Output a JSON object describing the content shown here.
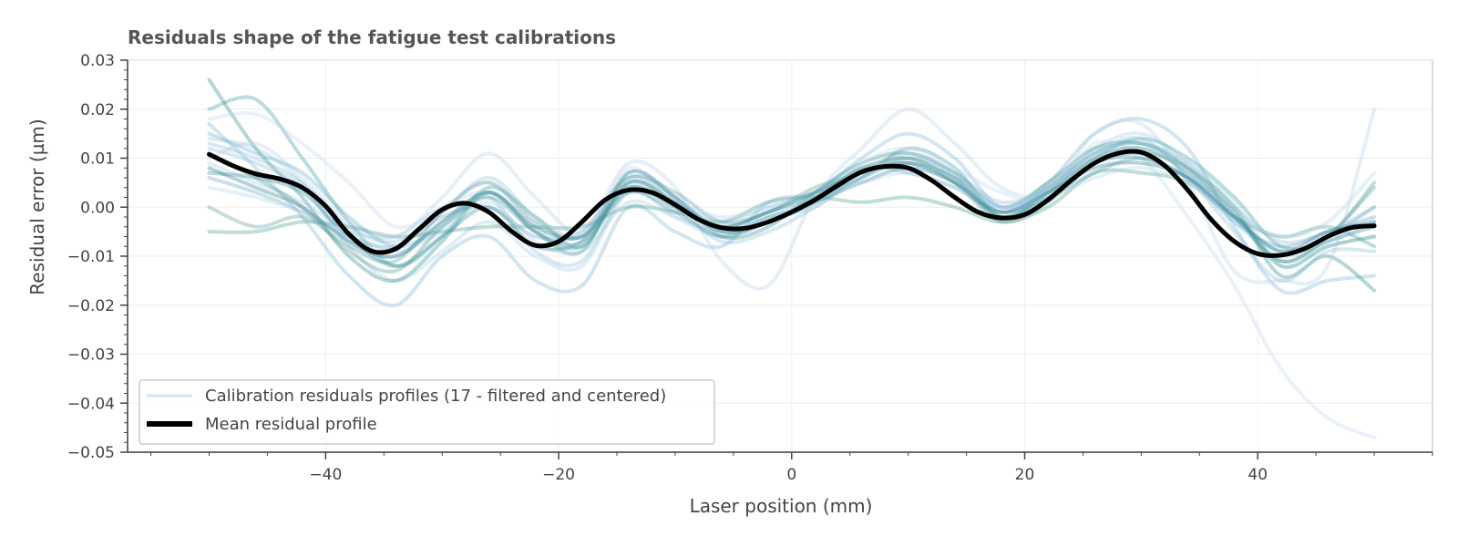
{
  "chart_data": {
    "type": "line",
    "title": "Residuals shape of the fatigue test calibrations",
    "xlabel": "Laser position (mm)",
    "ylabel": "Residual error (µm)",
    "xlim": [
      -57,
      55
    ],
    "ylim": [
      -0.05,
      0.03
    ],
    "x_ticks": [
      -40,
      -20,
      0,
      20,
      40
    ],
    "x_tick_labels": [
      "−40",
      "−20",
      "0",
      "20",
      "40"
    ],
    "y_ticks": [
      -0.05,
      -0.04,
      -0.03,
      -0.02,
      -0.01,
      0.0,
      0.01,
      0.02,
      0.03
    ],
    "y_tick_labels": [
      "−0.05",
      "−0.04",
      "−0.03",
      "−0.02",
      "−0.01",
      "0.00",
      "0.01",
      "0.02",
      "0.03"
    ],
    "grid": true,
    "legend_position": "lower-left",
    "legend": [
      {
        "label": "Calibration residuals profiles (17 - filtered and centered)",
        "style": "thin-light"
      },
      {
        "label": "Mean residual profile",
        "style": "thick-black"
      }
    ],
    "mean_series": {
      "name": "Mean residual profile",
      "color": "#000000",
      "points": [
        [
          -50,
          0.0108
        ],
        [
          -48,
          0.0085
        ],
        [
          -46,
          0.0068
        ],
        [
          -44,
          0.0058
        ],
        [
          -42,
          0.004
        ],
        [
          -40,
          0.0002
        ],
        [
          -38,
          -0.0055
        ],
        [
          -36,
          -0.009
        ],
        [
          -34,
          -0.0085
        ],
        [
          -32,
          -0.0045
        ],
        [
          -30,
          -0.0005
        ],
        [
          -28,
          0.0008
        ],
        [
          -26,
          -0.001
        ],
        [
          -24,
          -0.005
        ],
        [
          -22,
          -0.0078
        ],
        [
          -20,
          -0.007
        ],
        [
          -18,
          -0.003
        ],
        [
          -16,
          0.0015
        ],
        [
          -14,
          0.0035
        ],
        [
          -12,
          0.003
        ],
        [
          -10,
          0.0005
        ],
        [
          -8,
          -0.0025
        ],
        [
          -6,
          -0.0042
        ],
        [
          -4,
          -0.0043
        ],
        [
          -2,
          -0.003
        ],
        [
          0,
          -0.001
        ],
        [
          2,
          0.0015
        ],
        [
          4,
          0.0045
        ],
        [
          6,
          0.0072
        ],
        [
          8,
          0.0083
        ],
        [
          10,
          0.008
        ],
        [
          12,
          0.0055
        ],
        [
          14,
          0.002
        ],
        [
          16,
          -0.001
        ],
        [
          18,
          -0.0022
        ],
        [
          20,
          -0.0015
        ],
        [
          22,
          0.0015
        ],
        [
          24,
          0.0055
        ],
        [
          26,
          0.009
        ],
        [
          28,
          0.011
        ],
        [
          30,
          0.0112
        ],
        [
          32,
          0.0085
        ],
        [
          34,
          0.0035
        ],
        [
          36,
          -0.0025
        ],
        [
          38,
          -0.007
        ],
        [
          40,
          -0.0095
        ],
        [
          42,
          -0.0098
        ],
        [
          44,
          -0.0085
        ],
        [
          46,
          -0.006
        ],
        [
          48,
          -0.0042
        ],
        [
          50,
          -0.0038
        ]
      ]
    },
    "series_x": [
      -50,
      -46,
      -42,
      -38,
      -34,
      -30,
      -26,
      -22,
      -18,
      -14,
      -10,
      -6,
      -2,
      2,
      6,
      10,
      14,
      18,
      22,
      26,
      30,
      34,
      38,
      42,
      46,
      50
    ],
    "series": [
      {
        "color": "#a6cee3",
        "y": [
          0.014,
          0.012,
          0.005,
          -0.008,
          -0.015,
          -0.009,
          -0.003,
          -0.01,
          -0.012,
          0.003,
          -0.002,
          -0.006,
          -0.002,
          0.0,
          0.007,
          0.009,
          0.006,
          -0.002,
          0.004,
          0.012,
          0.015,
          0.009,
          0.001,
          -0.012,
          -0.008,
          -0.006
        ]
      },
      {
        "color": "#6aa6c9",
        "y": [
          0.006,
          0.003,
          -0.001,
          -0.006,
          -0.008,
          -0.002,
          0.0,
          -0.006,
          -0.005,
          0.006,
          0.002,
          -0.005,
          -0.003,
          0.001,
          0.008,
          0.007,
          0.004,
          -0.001,
          0.002,
          0.007,
          0.01,
          0.006,
          -0.003,
          -0.008,
          -0.005,
          -0.002
        ]
      },
      {
        "color": "#3a9fa0",
        "y": [
          0.02,
          0.022,
          0.01,
          -0.003,
          -0.012,
          -0.006,
          0.004,
          -0.002,
          -0.008,
          0.005,
          0.001,
          -0.004,
          -0.001,
          0.002,
          0.006,
          0.012,
          0.008,
          -0.002,
          0.003,
          0.01,
          0.014,
          0.01,
          0.002,
          -0.008,
          -0.006,
          0.005
        ]
      },
      {
        "color": "#7ab8d6",
        "y": [
          0.017,
          0.008,
          -0.002,
          -0.014,
          -0.02,
          -0.01,
          -0.006,
          -0.015,
          -0.016,
          0.0,
          -0.005,
          -0.008,
          0.001,
          0.003,
          0.01,
          0.015,
          0.01,
          0.0,
          0.005,
          0.015,
          0.018,
          0.012,
          -0.004,
          -0.017,
          -0.015,
          -0.014
        ]
      },
      {
        "color": "#2e8b8b",
        "y": [
          0.026,
          0.012,
          0.002,
          -0.01,
          -0.015,
          -0.007,
          0.003,
          -0.005,
          -0.009,
          0.007,
          0.002,
          -0.006,
          -0.004,
          0.003,
          0.009,
          0.011,
          0.007,
          0.0,
          0.005,
          0.012,
          0.013,
          0.008,
          0.0,
          -0.014,
          -0.01,
          -0.017
        ]
      },
      {
        "color": "#b8d2e8",
        "y": [
          0.01,
          0.013,
          0.006,
          -0.003,
          -0.006,
          0.002,
          0.011,
          0.002,
          -0.005,
          0.009,
          0.004,
          -0.011,
          -0.016,
          0.002,
          0.012,
          0.02,
          0.013,
          0.004,
          0.003,
          0.015,
          0.017,
          0.005,
          -0.013,
          -0.015,
          -0.012,
          0.02
        ]
      },
      {
        "color": "#c4d6ec",
        "y": [
          0.018,
          0.019,
          0.013,
          0.005,
          -0.004,
          0.0,
          0.005,
          -0.004,
          -0.007,
          0.008,
          0.0,
          -0.004,
          -0.002,
          0.001,
          0.009,
          0.012,
          0.008,
          0.003,
          0.002,
          0.013,
          0.01,
          -0.002,
          -0.016,
          -0.033,
          -0.043,
          -0.047
        ]
      },
      {
        "color": "#4a9e8a",
        "y": [
          -0.005,
          -0.005,
          -0.003,
          -0.004,
          -0.006,
          -0.005,
          -0.004,
          -0.004,
          -0.004,
          0.0,
          -0.001,
          -0.003,
          0.001,
          0.002,
          0.001,
          0.002,
          0.0,
          -0.003,
          0.0,
          0.007,
          0.007,
          0.005,
          -0.002,
          -0.006,
          -0.004,
          -0.008
        ]
      },
      {
        "color": "#8ec0dc",
        "y": [
          0.012,
          0.009,
          0.004,
          -0.007,
          -0.01,
          -0.003,
          0.002,
          -0.009,
          -0.011,
          0.004,
          0.0,
          -0.007,
          -0.005,
          0.0,
          0.006,
          0.01,
          0.007,
          -0.001,
          0.004,
          0.011,
          0.014,
          0.006,
          -0.005,
          -0.015,
          -0.009,
          -0.009
        ]
      },
      {
        "color": "#5e9e9e",
        "y": [
          0.0,
          -0.004,
          -0.002,
          -0.008,
          -0.011,
          -0.001,
          0.005,
          -0.003,
          -0.006,
          0.006,
          0.003,
          -0.003,
          -0.001,
          0.004,
          0.007,
          0.01,
          0.005,
          -0.003,
          0.001,
          0.009,
          0.011,
          0.008,
          -0.001,
          -0.011,
          -0.006,
          0.004
        ]
      },
      {
        "color": "#a8cde5",
        "y": [
          0.009,
          0.005,
          0.001,
          -0.005,
          -0.009,
          -0.005,
          0.001,
          -0.007,
          -0.009,
          0.001,
          -0.002,
          -0.005,
          -0.002,
          0.002,
          0.008,
          0.009,
          0.006,
          0.0,
          0.003,
          0.01,
          0.012,
          0.007,
          -0.003,
          -0.01,
          -0.007,
          -0.003
        ]
      },
      {
        "color": "#3b8fa3",
        "y": [
          0.007,
          0.006,
          0.003,
          -0.006,
          -0.012,
          -0.006,
          0.0,
          -0.008,
          -0.007,
          0.003,
          -0.001,
          -0.006,
          -0.003,
          0.001,
          0.005,
          0.008,
          0.005,
          -0.002,
          0.002,
          0.009,
          0.01,
          0.006,
          -0.002,
          -0.011,
          -0.007,
          -0.004
        ]
      },
      {
        "color": "#93bed6",
        "y": [
          0.013,
          0.01,
          0.005,
          -0.004,
          -0.007,
          -0.001,
          0.006,
          -0.002,
          -0.006,
          0.005,
          0.001,
          -0.003,
          0.0,
          0.003,
          0.007,
          0.011,
          0.007,
          0.001,
          0.004,
          0.011,
          0.013,
          0.009,
          0.0,
          -0.007,
          -0.005,
          0.0
        ]
      },
      {
        "color": "#4f9c96",
        "y": [
          0.011,
          0.006,
          0.0,
          -0.009,
          -0.013,
          -0.004,
          0.002,
          -0.005,
          -0.008,
          0.005,
          0.001,
          -0.005,
          -0.003,
          0.002,
          0.008,
          0.01,
          0.006,
          -0.002,
          0.003,
          0.01,
          0.012,
          0.007,
          -0.001,
          -0.012,
          -0.008,
          -0.006
        ]
      },
      {
        "color": "#b5d5ea",
        "y": [
          0.004,
          0.002,
          -0.001,
          -0.005,
          -0.006,
          0.0,
          0.003,
          -0.003,
          -0.004,
          0.004,
          0.001,
          -0.002,
          0.0,
          0.002,
          0.005,
          0.007,
          0.004,
          0.0,
          0.002,
          0.006,
          0.008,
          0.005,
          -0.001,
          -0.006,
          -0.003,
          0.007
        ]
      },
      {
        "color": "#6fb0c8",
        "y": [
          0.015,
          0.011,
          0.007,
          -0.002,
          -0.008,
          -0.004,
          0.003,
          -0.005,
          -0.007,
          0.007,
          0.002,
          -0.005,
          -0.002,
          0.001,
          0.006,
          0.009,
          0.006,
          -0.001,
          0.004,
          0.011,
          0.013,
          0.008,
          -0.002,
          -0.009,
          -0.006,
          0.0
        ]
      },
      {
        "color": "#2f7f8f",
        "y": [
          0.008,
          0.004,
          0.0,
          -0.007,
          -0.01,
          -0.003,
          0.003,
          -0.004,
          -0.006,
          0.004,
          0.0,
          -0.004,
          -0.001,
          0.003,
          0.007,
          0.009,
          0.005,
          -0.001,
          0.003,
          0.008,
          0.009,
          0.006,
          -0.002,
          -0.009,
          -0.005,
          -0.003
        ]
      }
    ]
  }
}
